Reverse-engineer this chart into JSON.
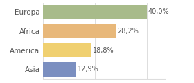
{
  "categories": [
    "Europa",
    "Africa",
    "America",
    "Asia"
  ],
  "values": [
    40.0,
    28.2,
    18.8,
    12.9
  ],
  "labels": [
    "40,0%",
    "28,2%",
    "18,8%",
    "12,9%"
  ],
  "bar_colors": [
    "#a8bb8a",
    "#e8b87a",
    "#f0d070",
    "#7b8fc0"
  ],
  "background_color": "#ffffff",
  "xlim_max": 47,
  "bar_height": 0.75,
  "label_fontsize": 7.0,
  "tick_fontsize": 7.5,
  "grid_color": "#dddddd",
  "label_color": "#555555",
  "grid_xticks": [
    0,
    10,
    20,
    30,
    40
  ]
}
